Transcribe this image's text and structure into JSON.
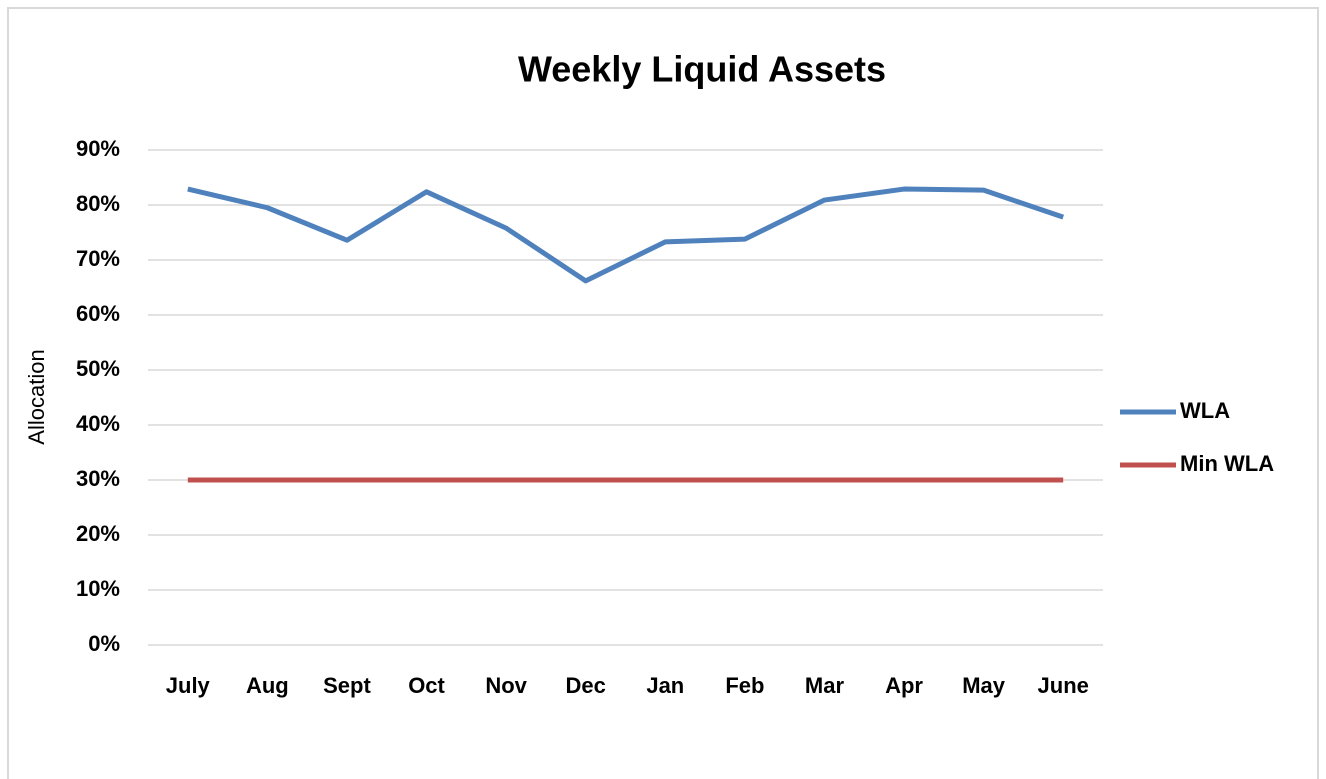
{
  "chart_data": {
    "type": "line",
    "title": "Weekly Liquid Assets",
    "y_label": "Allocation",
    "categories": [
      "July",
      "Aug",
      "Sept",
      "Oct",
      "Nov",
      "Dec",
      "Jan",
      "Feb",
      "Mar",
      "Apr",
      "May",
      "June"
    ],
    "series": [
      {
        "name": "WLA",
        "color": "#4f81bd",
        "values": [
          82.9,
          79.5,
          73.6,
          82.4,
          75.8,
          66.2,
          73.3,
          73.8,
          80.9,
          82.9,
          82.7,
          77.8
        ]
      },
      {
        "name": "Min WLA",
        "color": "#c0504d",
        "values": [
          30,
          30,
          30,
          30,
          30,
          30,
          30,
          30,
          30,
          30,
          30,
          30
        ]
      }
    ],
    "ylim": [
      0,
      90
    ],
    "yticks": [
      {
        "value": 0,
        "label": "0%"
      },
      {
        "value": 10,
        "label": "10%"
      },
      {
        "value": 20,
        "label": "20%"
      },
      {
        "value": 30,
        "label": "30%"
      },
      {
        "value": 40,
        "label": "40%"
      },
      {
        "value": 50,
        "label": "50%"
      },
      {
        "value": 60,
        "label": "60%"
      },
      {
        "value": 70,
        "label": "70%"
      },
      {
        "value": 80,
        "label": "80%"
      },
      {
        "value": 90,
        "label": "90%"
      }
    ],
    "grid": true,
    "legend": "right"
  }
}
